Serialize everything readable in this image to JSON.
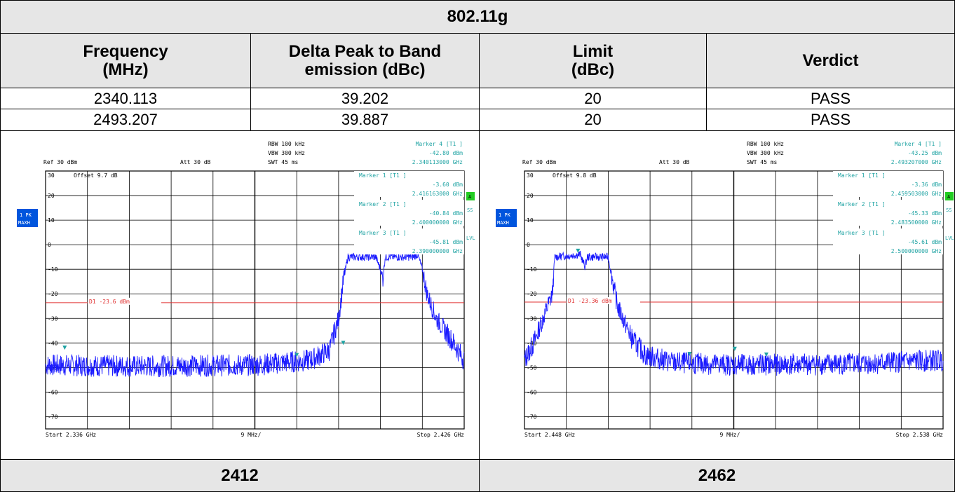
{
  "table": {
    "title": "802.11g",
    "headers": [
      "Frequency\n(MHz)",
      "Delta Peak to Band\nemission (dBc)",
      "Limit\n(dBc)",
      "Verdict"
    ],
    "header_lines": [
      [
        "Frequency",
        "(MHz)"
      ],
      [
        "Delta Peak to Band",
        "emission (dBc)"
      ],
      [
        "Limit",
        "(dBc)"
      ],
      [
        "Verdict"
      ]
    ],
    "rows": [
      [
        "2340.113",
        "39.202",
        "20",
        "PASS"
      ],
      [
        "2493.207",
        "39.887",
        "20",
        "PASS"
      ]
    ],
    "captions": [
      "2412",
      "2462"
    ]
  },
  "colors": {
    "trace": "#1a1aff",
    "limit": "#e03030",
    "marker": "#1fa3a3",
    "grid": "#000000",
    "sidebar": "#0055dd",
    "status": "#22cc22"
  },
  "chart_data": [
    {
      "type": "line",
      "ref_text": "Ref  30 dBm",
      "att_text": "Att  30 dB",
      "offset_text": "Offset   9.7 dB",
      "rbw": "RBW  100 kHz",
      "vbw": "VBW  300 kHz",
      "swt": "SWT  45 ms",
      "side_labels": [
        "1 PK",
        "MAXH"
      ],
      "right_labels": [
        "A",
        "SS",
        "LVL"
      ],
      "yticks": [
        30,
        20,
        10,
        0,
        -10,
        -20,
        -30,
        -40,
        -50,
        -60,
        -70
      ],
      "ytick_labels": [
        "30",
        "20",
        "10",
        "0",
        "-10",
        "-20",
        "-30",
        "-40",
        "-50",
        "-60",
        "-70"
      ],
      "ylim": [
        -75,
        30
      ],
      "xlim": [
        2336,
        2426
      ],
      "start_text": "Start  2.336 GHz",
      "div_text": "9 MHz/",
      "stop_text": "Stop  2.426 GHz",
      "limit_line": {
        "value": -23.6,
        "label": "D1  -23.6  dBm"
      },
      "markers_text": [
        "Marker 4 [T1 ]",
        "-42.80 dBm",
        "2.340113000 GHz",
        "Marker 1 [T1 ]",
        "-3.60 dBm",
        "2.416163000 GHz",
        "Marker 2 [T1 ]",
        "-40.84 dBm",
        "2.400000000 GHz",
        "Marker 3 [T1 ]",
        "-45.81 dBm",
        "2.390000000 GHz"
      ],
      "markers": [
        {
          "x": 2340.113,
          "y": -42.8
        },
        {
          "x": 2416.163,
          "y": -3.6
        },
        {
          "x": 2400.0,
          "y": -40.84
        },
        {
          "x": 2390.0,
          "y": -45.81
        }
      ],
      "envelope": [
        [
          2336,
          -49
        ],
        [
          2356,
          -49.5
        ],
        [
          2381,
          -49
        ],
        [
          2393,
          -47
        ],
        [
          2397,
          -43
        ],
        [
          2399,
          -30
        ],
        [
          2400,
          -15
        ],
        [
          2401,
          -5
        ],
        [
          2407,
          -5
        ],
        [
          2408,
          -10
        ],
        [
          2408.5,
          -14
        ],
        [
          2409,
          -5
        ],
        [
          2415,
          -5
        ],
        [
          2416,
          -4
        ],
        [
          2417,
          -10
        ],
        [
          2418,
          -20
        ],
        [
          2420,
          -30
        ],
        [
          2423,
          -38
        ],
        [
          2426,
          -47
        ]
      ],
      "seed": 7
    },
    {
      "type": "line",
      "ref_text": "Ref  30 dBm",
      "att_text": "Att  30 dB",
      "offset_text": "Offset   9.8 dB",
      "rbw": "RBW  100 kHz",
      "vbw": "VBW  300 kHz",
      "swt": "SWT  45 ms",
      "side_labels": [
        "1 PK",
        "MAXH"
      ],
      "right_labels": [
        "A",
        "SS",
        "LVL"
      ],
      "yticks": [
        30,
        20,
        10,
        0,
        -10,
        -20,
        -30,
        -40,
        -50,
        -60,
        -70
      ],
      "ytick_labels": [
        "30",
        "20",
        "10",
        "0",
        "-10",
        "-20",
        "-30",
        "-40",
        "-50",
        "-60",
        "-70"
      ],
      "ylim": [
        -75,
        30
      ],
      "xlim": [
        2448,
        2538
      ],
      "start_text": "Start  2.448 GHz",
      "div_text": "9 MHz/",
      "stop_text": "Stop  2.538 GHz",
      "limit_line": {
        "value": -23.36,
        "label": "D1  -23.36  dBm"
      },
      "markers_text": [
        "Marker 4 [T1 ]",
        "-43.25 dBm",
        "2.493207000 GHz",
        "Marker 1 [T1 ]",
        "-3.36 dBm",
        "2.459503000 GHz",
        "Marker 2 [T1 ]",
        "-45.33 dBm",
        "2.483500000 GHz",
        "Marker 3 [T1 ]",
        "-45.61 dBm",
        "2.500000000 GHz"
      ],
      "markers": [
        {
          "x": 2493.207,
          "y": -43.25
        },
        {
          "x": 2459.503,
          "y": -3.36
        },
        {
          "x": 2483.5,
          "y": -45.33
        },
        {
          "x": 2500.0,
          "y": -45.61
        }
      ],
      "envelope": [
        [
          2448,
          -47
        ],
        [
          2450,
          -40
        ],
        [
          2452,
          -30
        ],
        [
          2454,
          -20
        ],
        [
          2454.5,
          -5
        ],
        [
          2460,
          -4
        ],
        [
          2461,
          -9
        ],
        [
          2461.5,
          -5
        ],
        [
          2466,
          -5
        ],
        [
          2467,
          -15
        ],
        [
          2468,
          -25
        ],
        [
          2471,
          -38
        ],
        [
          2474,
          -45
        ],
        [
          2480,
          -48
        ],
        [
          2495,
          -49
        ],
        [
          2520,
          -48.5
        ],
        [
          2538,
          -47
        ]
      ],
      "seed": 13
    }
  ]
}
